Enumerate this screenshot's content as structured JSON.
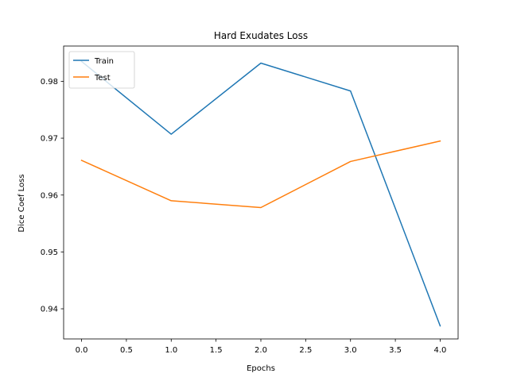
{
  "chart_data": {
    "type": "line",
    "title": "Hard Exudates Loss",
    "xlabel": "Epochs",
    "ylabel": "Dice Coef Loss",
    "x": [
      0,
      1,
      2,
      3,
      4
    ],
    "xlim": [
      -0.2,
      4.2
    ],
    "ylim": [
      0.9347,
      0.9862
    ],
    "xticks": [
      0,
      0.5,
      1,
      1.5,
      2,
      2.5,
      3,
      3.5,
      4
    ],
    "xtick_labels": [
      "0.0",
      "0.5",
      "1.0",
      "1.5",
      "2.0",
      "2.5",
      "3.0",
      "3.5",
      "4.0"
    ],
    "yticks": [
      0.94,
      0.95,
      0.96,
      0.97,
      0.98
    ],
    "ytick_labels": [
      "0.94",
      "0.95",
      "0.96",
      "0.97",
      "0.98"
    ],
    "grid": false,
    "legend_position": "top-left",
    "series": [
      {
        "name": "Train",
        "color": "#1f77b4",
        "values": [
          0.9835,
          0.9707,
          0.9832,
          0.9783,
          0.937
        ]
      },
      {
        "name": "Test",
        "color": "#ff7f0e",
        "values": [
          0.9661,
          0.959,
          0.9578,
          0.9659,
          0.9695
        ]
      }
    ]
  }
}
